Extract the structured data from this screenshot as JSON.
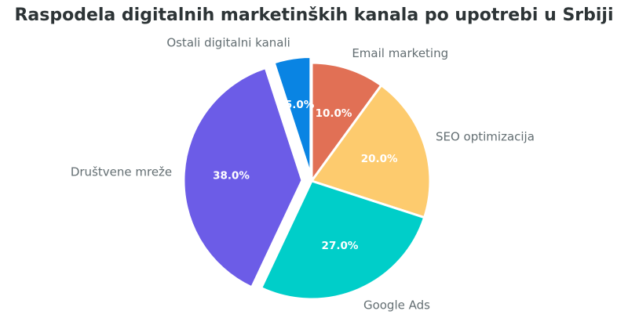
{
  "chart_data": {
    "type": "pie",
    "title": "Raspodela digitalnih marketinških kanala po upotrebi u Srbiji",
    "start_angle_deg": 90,
    "direction": "clockwise",
    "slices": [
      {
        "label": "Email marketing",
        "value": 10.0,
        "display": "10.0%",
        "color": "#e17055",
        "explode": 0
      },
      {
        "label": "SEO optimizacija",
        "value": 20.0,
        "display": "20.0%",
        "color": "#fdcb6e",
        "explode": 0
      },
      {
        "label": "Google Ads",
        "value": 27.0,
        "display": "27.0%",
        "color": "#00cec9",
        "explode": 0
      },
      {
        "label": "Društvene mreže",
        "value": 38.0,
        "display": "38.0%",
        "color": "#6c5ce7",
        "explode": 0.08
      },
      {
        "label": "Ostali digitalni kanali",
        "value": 5.0,
        "display": "5.0%",
        "color": "#0984e3",
        "explode": 0.05
      }
    ]
  }
}
